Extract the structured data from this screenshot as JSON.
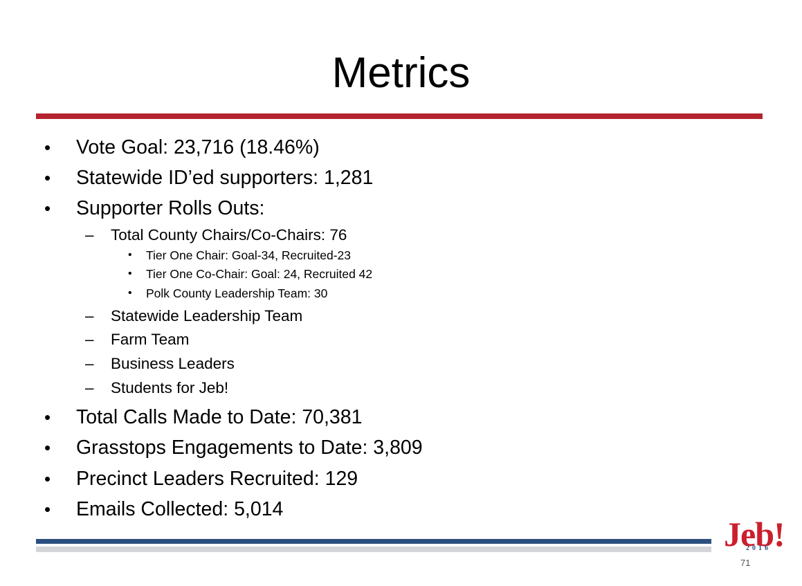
{
  "slide": {
    "title": "Metrics",
    "page_number": "71"
  },
  "bullets": {
    "vote_goal": "Vote Goal: 23,716 (18.46%)",
    "statewide_ided": "Statewide ID’ed supporters: 1,281",
    "supporter_rollouts": "Supporter Rolls Outs:",
    "county_chairs": "Total County Chairs/Co-Chairs: 76",
    "tier_one_chair": "Tier One Chair: Goal-34, Recruited-23",
    "tier_one_cochair": "Tier One Co-Chair: Goal: 24, Recruited 42",
    "polk_county": "Polk County Leadership Team: 30",
    "statewide_leadership": "Statewide Leadership Team",
    "farm_team": "Farm Team",
    "business_leaders": "Business Leaders",
    "students": "Students for Jeb!",
    "total_calls": "Total Calls Made to Date: 70,381",
    "grasstops": "Grasstops Engagements to Date: 3,809",
    "precinct_leaders": "Precinct Leaders Recruited: 129",
    "emails": "Emails Collected: 5,014"
  },
  "markers": {
    "bullet": "•",
    "dash": "–"
  },
  "logo": {
    "word": "Jeb!",
    "year": "2016",
    "accent_color": "#cc1f2e",
    "secondary_color": "#2b4f7e"
  },
  "colors": {
    "top_rule": "#b5232f",
    "bottom_rule_blue": "#2b4f7e",
    "bottom_rule_gray": "#d3d5d8"
  }
}
